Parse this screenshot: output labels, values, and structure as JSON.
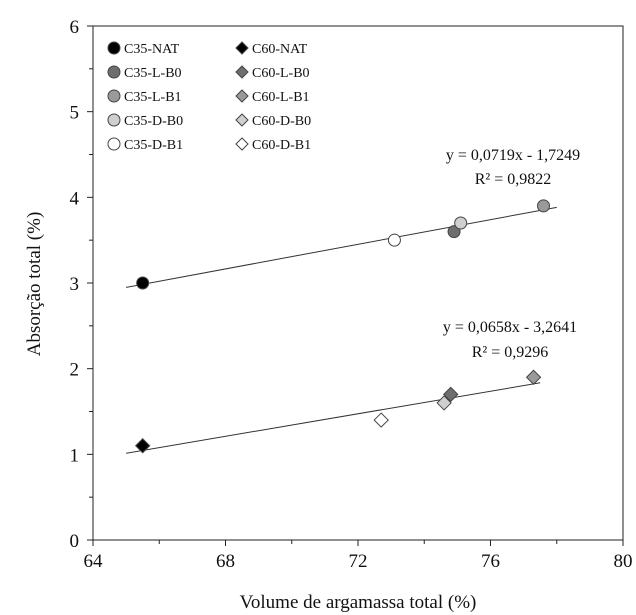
{
  "chart_data": {
    "type": "scatter",
    "title": "",
    "xlabel": "Volume de argamassa total (%)",
    "ylabel": "Absorção total (%)",
    "xlim": [
      64,
      80
    ],
    "ylim": [
      0,
      6
    ],
    "x_ticks": [
      64,
      68,
      72,
      76,
      80
    ],
    "y_ticks": [
      0,
      1,
      2,
      3,
      4,
      5,
      6
    ],
    "x_tick_labels": [
      "64",
      "68",
      "72",
      "76",
      "80"
    ],
    "y_tick_labels": [
      "0",
      "1",
      "2",
      "3",
      "4",
      "5",
      "6"
    ],
    "grid": false,
    "legend_position": "top-left",
    "series": [
      {
        "name": "C35-NAT",
        "marker": "circle",
        "color": "#000000",
        "points": [
          [
            65.5,
            3.0
          ]
        ]
      },
      {
        "name": "C35-L-B0",
        "marker": "circle",
        "color": "#6e6e6e",
        "points": [
          [
            74.9,
            3.6
          ]
        ]
      },
      {
        "name": "C35-L-B1",
        "marker": "circle",
        "color": "#9a9a9a",
        "points": [
          [
            77.6,
            3.9
          ]
        ]
      },
      {
        "name": "C35-D-B0",
        "marker": "circle",
        "color": "#cfcfcf",
        "points": [
          [
            75.1,
            3.7
          ]
        ]
      },
      {
        "name": "C35-D-B1",
        "marker": "circle",
        "color": "#ffffff",
        "points": [
          [
            73.1,
            3.5
          ]
        ]
      },
      {
        "name": "C60-NAT",
        "marker": "diamond",
        "color": "#000000",
        "points": [
          [
            65.5,
            1.1
          ]
        ]
      },
      {
        "name": "C60-L-B0",
        "marker": "diamond",
        "color": "#6e6e6e",
        "points": [
          [
            74.8,
            1.7
          ]
        ]
      },
      {
        "name": "C60-L-B1",
        "marker": "diamond",
        "color": "#9a9a9a",
        "points": [
          [
            77.3,
            1.9
          ]
        ]
      },
      {
        "name": "C60-D-B0",
        "marker": "diamond",
        "color": "#cfcfcf",
        "points": [
          [
            74.6,
            1.6
          ]
        ]
      },
      {
        "name": "C60-D-B1",
        "marker": "diamond",
        "color": "#ffffff",
        "points": [
          [
            72.7,
            1.4
          ]
        ]
      }
    ],
    "trendlines": [
      {
        "slope": 0.0719,
        "intercept": -1.7249,
        "x_range": [
          65.0,
          78.0
        ],
        "equation": "y = 0,0719x - 1,7249",
        "r2": "R² = 0,9822"
      },
      {
        "slope": 0.0658,
        "intercept": -3.2641,
        "x_range": [
          65.0,
          77.5
        ],
        "equation": "y = 0,0658x - 3,2641",
        "r2": "R² = 0,9296"
      }
    ]
  }
}
